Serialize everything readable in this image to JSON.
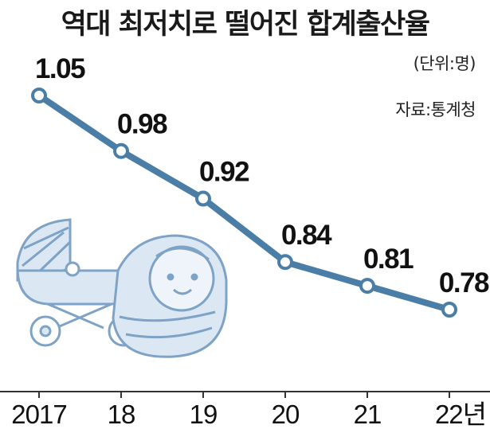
{
  "chart_data": {
    "type": "line",
    "title": "역대 최저치로 떨어진 합계출산율",
    "unit_note": "(단위:명)",
    "source_note": "자료:통계청",
    "categories": [
      "2017",
      "18",
      "19",
      "20",
      "21",
      "22년"
    ],
    "series": [
      {
        "values": [
          1.05,
          0.98,
          0.92,
          0.84,
          0.81,
          0.78
        ]
      }
    ],
    "value_labels": [
      "1.05",
      "0.98",
      "0.92",
      "0.84",
      "0.81",
      "0.78"
    ],
    "colors": {
      "line": "#4a7ea6",
      "marker_fill": "#ffffff",
      "illustration": "#dbe8f4",
      "illustration_stroke": "#7ea3c6"
    }
  }
}
